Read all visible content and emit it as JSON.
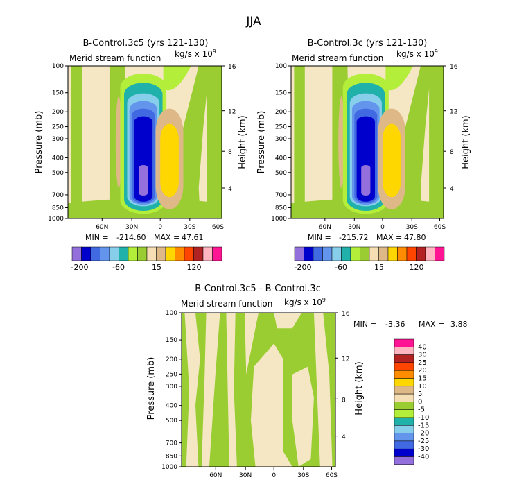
{
  "page": {
    "title": "JJA"
  },
  "colors": {
    "levels": [
      "#9370DB",
      "#0000CD",
      "#4169E1",
      "#6495ED",
      "#87CEEB",
      "#20B2AA",
      "#B3EE3A",
      "#9ACD32",
      "#F5DEB3",
      "#DEB887",
      "#FFD700",
      "#FF8C00",
      "#FF4500",
      "#B22222",
      "#FFB6C1",
      "#FF1493"
    ],
    "bg_tan": "#F5E6C4",
    "bg_green": "#9ACD32"
  },
  "chart_data": [
    {
      "type": "heatmap",
      "id": "panel-a",
      "title": "B-Control.3c5 (yrs 121-130)",
      "subtitle": "Merid stream function",
      "units": "kg/s x 10",
      "units_exp": "9",
      "xlabel": "",
      "ylabel": "Pressure (mb)",
      "y2label": "Height (km)",
      "x_ticks": [
        "60N",
        "30N",
        "0",
        "30S",
        "60S"
      ],
      "y_ticks": [
        "100",
        "150",
        "200",
        "250",
        "300",
        "400",
        "500",
        "700",
        "850",
        "1000"
      ],
      "y2_ticks": [
        "16",
        "12",
        "8",
        "4"
      ],
      "stats": {
        "min_label": "MIN =",
        "min": "-214.60",
        "max_label": "MAX =",
        "max": "47.61"
      },
      "colorbar_labels": [
        "-200",
        "-60",
        "15",
        "120"
      ],
      "cells": "regions"
    },
    {
      "type": "heatmap",
      "id": "panel-b",
      "title": "B-Control.3c (yrs 121-130)",
      "subtitle": "Merid stream function",
      "units": "kg/s x 10",
      "units_exp": "9",
      "ylabel": "Pressure (mb)",
      "y2label": "Height (km)",
      "x_ticks": [
        "60N",
        "30N",
        "0",
        "30S",
        "60S"
      ],
      "y_ticks": [
        "100",
        "150",
        "200",
        "250",
        "300",
        "400",
        "500",
        "700",
        "850",
        "1000"
      ],
      "y2_ticks": [
        "16",
        "12",
        "8",
        "4"
      ],
      "stats": {
        "min_label": "MIN =",
        "min": "-215.72",
        "max_label": "MAX =",
        "max": "47.80"
      },
      "colorbar_labels": [
        "-200",
        "-60",
        "15",
        "120"
      ]
    },
    {
      "type": "heatmap",
      "id": "panel-diff",
      "title": "B-Control.3c5 - B-Control.3c",
      "subtitle": "Merid stream function",
      "units": "kg/s x 10",
      "units_exp": "9",
      "ylabel": "Pressure (mb)",
      "y2label": "Height (km)",
      "x_ticks": [
        "60N",
        "30N",
        "0",
        "30S",
        "60S"
      ],
      "y_ticks": [
        "100",
        "150",
        "200",
        "250",
        "300",
        "400",
        "500",
        "700",
        "850",
        "1000"
      ],
      "y2_ticks": [
        "16",
        "12",
        "8",
        "4"
      ],
      "stats": {
        "min_label": "MIN =",
        "min": "-3.36",
        "max_label": "MAX =",
        "max": "3.88"
      },
      "colorbar_labels": [
        "40",
        "30",
        "25",
        "20",
        "15",
        "10",
        "5",
        "0",
        "-5",
        "-10",
        "-15",
        "-20",
        "-25",
        "-30",
        "-40"
      ]
    }
  ]
}
